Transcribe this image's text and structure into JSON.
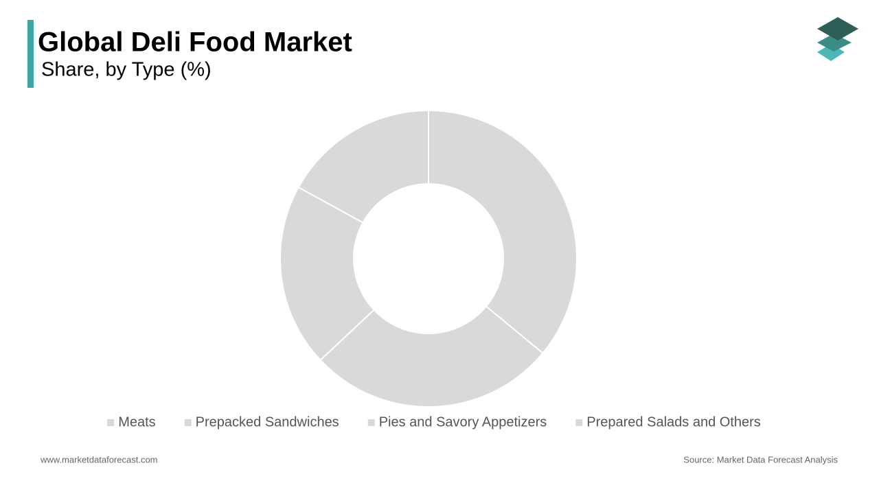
{
  "chart_data": {
    "type": "donut",
    "title": "Global Deli Food Market",
    "subtitle": "Share, by Type (%)",
    "categories": [
      "Meats",
      "Prepacked Sandwiches",
      "Pies and Savory Appetizers",
      "Prepared Salads and Others"
    ],
    "values": [
      36,
      27,
      20,
      17
    ],
    "colors": [
      "#d9d9d9",
      "#d9d9d9",
      "#d9d9d9",
      "#d9d9d9"
    ],
    "legend": "bottom"
  },
  "footer": {
    "website": "www.marketdataforecast.com",
    "source": "Source: Market Data Forecast Analysis"
  }
}
